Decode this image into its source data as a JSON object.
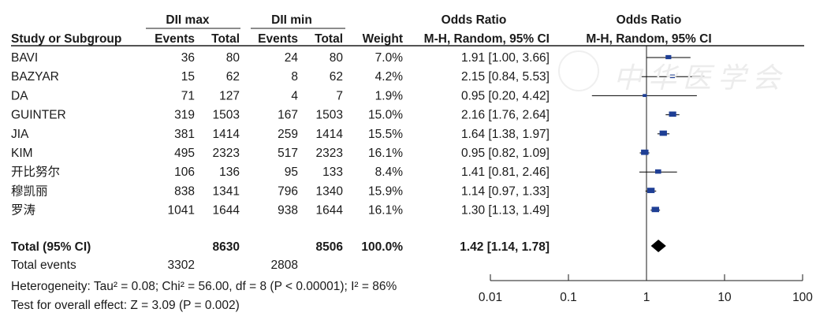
{
  "header": {
    "group1": "DII max",
    "group2": "DII min",
    "or_left": "Odds Ratio",
    "or_right": "Odds Ratio",
    "col_study": "Study or Subgroup",
    "col_events1": "Events",
    "col_total1": "Total",
    "col_events2": "Events",
    "col_total2": "Total",
    "col_weight": "Weight",
    "col_method_left": "M-H, Random, 95% CI",
    "col_method_right": "M-H, Random, 95% CI"
  },
  "studies": [
    {
      "name": "BAVI",
      "e1": "36",
      "t1": "80",
      "e2": "24",
      "t2": "80",
      "weight": "7.0%",
      "ci_text": "1.91 [1.00, 3.66]",
      "or": 1.91,
      "lo": 1.0,
      "hi": 3.66
    },
    {
      "name": "BAZYAR",
      "e1": "15",
      "t1": "62",
      "e2": "8",
      "t2": "62",
      "weight": "4.2%",
      "ci_text": "2.15 [0.84, 5.53]",
      "or": 2.15,
      "lo": 0.84,
      "hi": 5.53
    },
    {
      "name": "DA",
      "e1": "71",
      "t1": "127",
      "e2": "4",
      "t2": "7",
      "weight": "1.9%",
      "ci_text": "0.95 [0.20, 4.42]",
      "or": 0.95,
      "lo": 0.2,
      "hi": 4.42
    },
    {
      "name": "GUINTER",
      "e1": "319",
      "t1": "1503",
      "e2": "167",
      "t2": "1503",
      "weight": "15.0%",
      "ci_text": "2.16 [1.76, 2.64]",
      "or": 2.16,
      "lo": 1.76,
      "hi": 2.64
    },
    {
      "name": "JIA",
      "e1": "381",
      "t1": "1414",
      "e2": "259",
      "t2": "1414",
      "weight": "15.5%",
      "ci_text": "1.64 [1.38, 1.97]",
      "or": 1.64,
      "lo": 1.38,
      "hi": 1.97
    },
    {
      "name": "KIM",
      "e1": "495",
      "t1": "2323",
      "e2": "517",
      "t2": "2323",
      "weight": "16.1%",
      "ci_text": "0.95 [0.82, 1.09]",
      "or": 0.95,
      "lo": 0.82,
      "hi": 1.09
    },
    {
      "name": "开比努尔",
      "e1": "106",
      "t1": "136",
      "e2": "95",
      "t2": "133",
      "weight": "8.4%",
      "ci_text": "1.41 [0.81, 2.46]",
      "or": 1.41,
      "lo": 0.81,
      "hi": 2.46
    },
    {
      "name": "穆凯丽",
      "e1": "838",
      "t1": "1341",
      "e2": "796",
      "t2": "1340",
      "weight": "15.9%",
      "ci_text": "1.14 [0.97, 1.33]",
      "or": 1.14,
      "lo": 0.97,
      "hi": 1.33
    },
    {
      "name": "罗涛",
      "e1": "1041",
      "t1": "1644",
      "e2": "938",
      "t2": "1644",
      "weight": "16.1%",
      "ci_text": "1.30 [1.13, 1.49]",
      "or": 1.3,
      "lo": 1.13,
      "hi": 1.49
    }
  ],
  "total": {
    "label": "Total (95% CI)",
    "t1": "8630",
    "t2": "8506",
    "weight": "100.0%",
    "ci_text": "1.42 [1.14, 1.78]",
    "or": 1.42,
    "lo": 1.14,
    "hi": 1.78
  },
  "total_events": {
    "label": "Total events",
    "e1": "3302",
    "e2": "2808"
  },
  "heterogeneity": "Heterogeneity: Tau² = 0.08; Chi² = 56.00, df = 8 (P < 0.00001); I² = 86%",
  "overall_effect": "Test for overall effect: Z = 3.09 (P = 0.002)",
  "watermark_text": "中华医学会",
  "chart_data": {
    "type": "forest",
    "x_scale": "log",
    "xlim": [
      0.01,
      100
    ],
    "x_ticks": [
      "0.01",
      "0.1",
      "1",
      "10",
      "100"
    ],
    "x_tick_values": [
      0.01,
      0.1,
      1,
      10,
      100
    ],
    "null_line": 1,
    "colors": {
      "square": "#1f3f95",
      "line": "#000000",
      "diamond": "#000000"
    }
  }
}
